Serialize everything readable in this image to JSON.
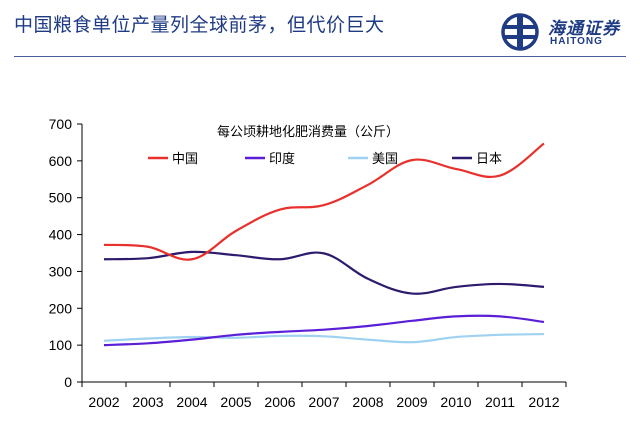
{
  "header": {
    "title": "中国粮食单位产量列全球前茅，但代价巨大"
  },
  "logo": {
    "cn_name": "海通证券",
    "en_name": "HAITONG"
  },
  "chart_data": {
    "type": "line",
    "title": "每公顷耕地化肥消费量（公斤）",
    "categories": [
      "2002",
      "2003",
      "2004",
      "2005",
      "2006",
      "2007",
      "2008",
      "2009",
      "2010",
      "2011",
      "2012"
    ],
    "ylim": [
      0,
      700
    ],
    "yticks": [
      0,
      100,
      200,
      300,
      400,
      500,
      600,
      700
    ],
    "xlabel": "",
    "ylabel": "",
    "series": [
      {
        "name": "中国",
        "color": "#e8312c",
        "values": [
          372,
          367,
          333,
          410,
          468,
          480,
          535,
          602,
          578,
          560,
          647
        ]
      },
      {
        "name": "印度",
        "color": "#5a1fd6",
        "values": [
          100,
          105,
          115,
          128,
          136,
          142,
          152,
          166,
          178,
          178,
          163
        ]
      },
      {
        "name": "美国",
        "color": "#9fd2f0",
        "values": [
          112,
          118,
          122,
          120,
          125,
          124,
          115,
          108,
          122,
          128,
          130
        ]
      },
      {
        "name": "日本",
        "color": "#2e1b6e",
        "values": [
          333,
          336,
          353,
          344,
          333,
          349,
          280,
          240,
          258,
          266,
          258
        ]
      }
    ]
  }
}
